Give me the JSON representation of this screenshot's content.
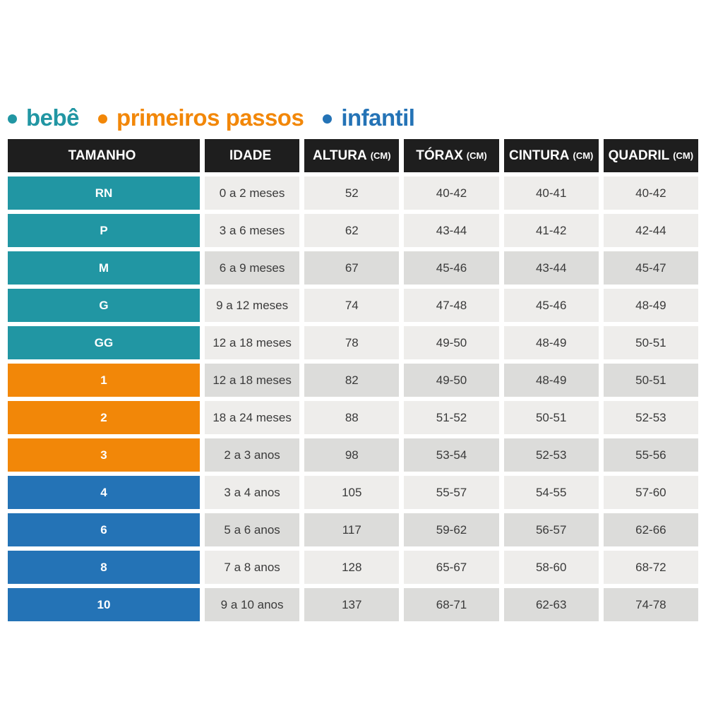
{
  "colors": {
    "bebe": "#2196a3",
    "primeiros_passos": "#f28708",
    "infantil": "#2473b6",
    "header_bg": "#1e1e1e",
    "cell_light": "#eeedeb",
    "cell_dark": "#dcdcda",
    "cell_text": "#3a3a3a"
  },
  "legend": {
    "items": [
      {
        "label": "bebê",
        "color_key": "bebe"
      },
      {
        "label": "primeiros passos",
        "color_key": "primeiros_passos"
      },
      {
        "label": "infantil",
        "color_key": "infantil"
      }
    ]
  },
  "table": {
    "headers": [
      {
        "label": "TAMANHO",
        "unit": ""
      },
      {
        "label": "IDADE",
        "unit": ""
      },
      {
        "label": "ALTURA",
        "unit": "(CM)"
      },
      {
        "label": "TÓRAX",
        "unit": "(CM)"
      },
      {
        "label": "CINTURA",
        "unit": "(CM)"
      },
      {
        "label": "QUADRIL",
        "unit": "(CM)"
      }
    ],
    "rows": [
      {
        "size": "RN",
        "group": "bebe",
        "shade": "light",
        "idade": "0 a 2 meses",
        "altura": "52",
        "torax": "40-42",
        "cintura": "40-41",
        "quadril": "40-42"
      },
      {
        "size": "P",
        "group": "bebe",
        "shade": "light",
        "idade": "3 a 6 meses",
        "altura": "62",
        "torax": "43-44",
        "cintura": "41-42",
        "quadril": "42-44"
      },
      {
        "size": "M",
        "group": "bebe",
        "shade": "dark",
        "idade": "6 a 9 meses",
        "altura": "67",
        "torax": "45-46",
        "cintura": "43-44",
        "quadril": "45-47"
      },
      {
        "size": "G",
        "group": "bebe",
        "shade": "light",
        "idade": "9 a 12 meses",
        "altura": "74",
        "torax": "47-48",
        "cintura": "45-46",
        "quadril": "48-49"
      },
      {
        "size": "GG",
        "group": "bebe",
        "shade": "light",
        "idade": "12 a 18 meses",
        "altura": "78",
        "torax": "49-50",
        "cintura": "48-49",
        "quadril": "50-51"
      },
      {
        "size": "1",
        "group": "primeiros_passos",
        "shade": "dark",
        "idade": "12 a 18 meses",
        "altura": "82",
        "torax": "49-50",
        "cintura": "48-49",
        "quadril": "50-51"
      },
      {
        "size": "2",
        "group": "primeiros_passos",
        "shade": "light",
        "idade": "18 a 24 meses",
        "altura": "88",
        "torax": "51-52",
        "cintura": "50-51",
        "quadril": "52-53"
      },
      {
        "size": "3",
        "group": "primeiros_passos",
        "shade": "dark",
        "idade": "2 a 3 anos",
        "altura": "98",
        "torax": "53-54",
        "cintura": "52-53",
        "quadril": "55-56"
      },
      {
        "size": "4",
        "group": "infantil",
        "shade": "light",
        "idade": "3 a 4 anos",
        "altura": "105",
        "torax": "55-57",
        "cintura": "54-55",
        "quadril": "57-60"
      },
      {
        "size": "6",
        "group": "infantil",
        "shade": "dark",
        "idade": "5 a 6 anos",
        "altura": "117",
        "torax": "59-62",
        "cintura": "56-57",
        "quadril": "62-66"
      },
      {
        "size": "8",
        "group": "infantil",
        "shade": "light",
        "idade": "7 a 8 anos",
        "altura": "128",
        "torax": "65-67",
        "cintura": "58-60",
        "quadril": "68-72"
      },
      {
        "size": "10",
        "group": "infantil",
        "shade": "dark",
        "idade": "9 a 10 anos",
        "altura": "137",
        "torax": "68-71",
        "cintura": "62-63",
        "quadril": "74-78"
      }
    ]
  }
}
